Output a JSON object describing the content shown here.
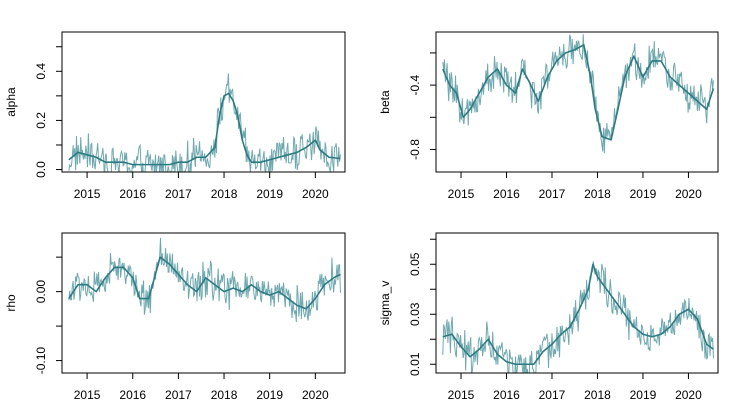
{
  "colors": {
    "band": "#6fa9af",
    "smooth": "#2e7a84",
    "axis": "#000000"
  },
  "chart_data": [
    {
      "type": "line",
      "ylabel": "alpha",
      "x_range": [
        2014.45,
        2020.65
      ],
      "ylim": [
        -0.01,
        0.56
      ],
      "xticks": [
        2015,
        2016,
        2017,
        2018,
        2019,
        2020
      ],
      "xtick_labels": [
        "2015",
        "2016",
        "2017",
        "2018",
        "2019",
        "2020"
      ],
      "yticks": [
        0.0,
        0.2,
        0.4
      ],
      "ytick_labels": [
        "0.0",
        "0.2",
        "0.4"
      ],
      "yminor": [
        0.1,
        0.3,
        0.5
      ],
      "series": [
        {
          "values": [
            [
              2014.6,
              0.04
            ],
            [
              2014.8,
              0.07
            ],
            [
              2015.0,
              0.06
            ],
            [
              2015.2,
              0.05
            ],
            [
              2015.4,
              0.03
            ],
            [
              2015.6,
              0.03
            ],
            [
              2015.8,
              0.03
            ],
            [
              2016.0,
              0.02
            ],
            [
              2016.2,
              0.02
            ],
            [
              2016.4,
              0.02
            ],
            [
              2016.6,
              0.02
            ],
            [
              2016.8,
              0.02
            ],
            [
              2017.0,
              0.03
            ],
            [
              2017.2,
              0.03
            ],
            [
              2017.4,
              0.05
            ],
            [
              2017.6,
              0.05
            ],
            [
              2017.8,
              0.09
            ],
            [
              2017.9,
              0.22
            ],
            [
              2018.0,
              0.3
            ],
            [
              2018.1,
              0.31
            ],
            [
              2018.2,
              0.28
            ],
            [
              2018.3,
              0.22
            ],
            [
              2018.4,
              0.12
            ],
            [
              2018.5,
              0.06
            ],
            [
              2018.6,
              0.03
            ],
            [
              2018.8,
              0.03
            ],
            [
              2019.0,
              0.04
            ],
            [
              2019.2,
              0.05
            ],
            [
              2019.4,
              0.06
            ],
            [
              2019.6,
              0.07
            ],
            [
              2019.8,
              0.09
            ],
            [
              2020.0,
              0.12
            ],
            [
              2020.1,
              0.08
            ],
            [
              2020.3,
              0.05
            ],
            [
              2020.55,
              0.045
            ]
          ]
        }
      ]
    },
    {
      "type": "line",
      "ylabel": "beta",
      "x_range": [
        2014.45,
        2020.65
      ],
      "ylim": [
        -0.94,
        -0.07
      ],
      "xticks": [
        2015,
        2016,
        2017,
        2018,
        2019,
        2020
      ],
      "xtick_labels": [
        "2015",
        "2016",
        "2017",
        "2018",
        "2019",
        "2020"
      ],
      "yticks": [
        -0.8,
        -0.4
      ],
      "ytick_labels": [
        "-0.8",
        "-0.4"
      ],
      "yminor": [
        -0.6,
        -0.2
      ],
      "series": [
        {
          "values": [
            [
              2014.6,
              -0.3
            ],
            [
              2014.75,
              -0.4
            ],
            [
              2014.9,
              -0.45
            ],
            [
              2015.05,
              -0.6
            ],
            [
              2015.2,
              -0.55
            ],
            [
              2015.4,
              -0.45
            ],
            [
              2015.6,
              -0.35
            ],
            [
              2015.8,
              -0.3
            ],
            [
              2016.0,
              -0.4
            ],
            [
              2016.2,
              -0.45
            ],
            [
              2016.35,
              -0.3
            ],
            [
              2016.5,
              -0.38
            ],
            [
              2016.7,
              -0.5
            ],
            [
              2016.9,
              -0.35
            ],
            [
              2017.1,
              -0.25
            ],
            [
              2017.3,
              -0.2
            ],
            [
              2017.5,
              -0.18
            ],
            [
              2017.7,
              -0.15
            ],
            [
              2017.85,
              -0.35
            ],
            [
              2017.95,
              -0.55
            ],
            [
              2018.1,
              -0.72
            ],
            [
              2018.3,
              -0.74
            ],
            [
              2018.45,
              -0.55
            ],
            [
              2018.6,
              -0.35
            ],
            [
              2018.8,
              -0.22
            ],
            [
              2019.0,
              -0.35
            ],
            [
              2019.2,
              -0.25
            ],
            [
              2019.4,
              -0.25
            ],
            [
              2019.6,
              -0.35
            ],
            [
              2019.8,
              -0.4
            ],
            [
              2020.0,
              -0.45
            ],
            [
              2020.2,
              -0.5
            ],
            [
              2020.4,
              -0.55
            ],
            [
              2020.55,
              -0.42
            ]
          ]
        }
      ]
    },
    {
      "type": "line",
      "ylabel": "rho",
      "x_range": [
        2014.45,
        2020.65
      ],
      "ylim": [
        -0.118,
        0.085
      ],
      "xticks": [
        2015,
        2016,
        2017,
        2018,
        2019,
        2020
      ],
      "xtick_labels": [
        "2015",
        "2016",
        "2017",
        "2018",
        "2019",
        "2020"
      ],
      "yticks": [
        -0.1,
        0.0
      ],
      "ytick_labels": [
        "-0.10",
        "0.00"
      ],
      "yminor": [
        -0.05,
        0.05
      ],
      "series": [
        {
          "values": [
            [
              2014.6,
              -0.01
            ],
            [
              2014.8,
              0.01
            ],
            [
              2015.0,
              0.01
            ],
            [
              2015.2,
              0.0
            ],
            [
              2015.4,
              0.02
            ],
            [
              2015.6,
              0.035
            ],
            [
              2015.8,
              0.035
            ],
            [
              2016.0,
              0.02
            ],
            [
              2016.15,
              -0.01
            ],
            [
              2016.35,
              -0.01
            ],
            [
              2016.6,
              0.05
            ],
            [
              2016.8,
              0.04
            ],
            [
              2017.0,
              0.025
            ],
            [
              2017.2,
              0.01
            ],
            [
              2017.4,
              0.0
            ],
            [
              2017.6,
              0.02
            ],
            [
              2017.8,
              0.01
            ],
            [
              2018.0,
              0.0
            ],
            [
              2018.2,
              0.005
            ],
            [
              2018.4,
              0.0
            ],
            [
              2018.6,
              0.01
            ],
            [
              2018.8,
              0.0
            ],
            [
              2019.0,
              -0.005
            ],
            [
              2019.2,
              0.0
            ],
            [
              2019.4,
              -0.01
            ],
            [
              2019.6,
              -0.02
            ],
            [
              2019.8,
              -0.025
            ],
            [
              2020.0,
              -0.01
            ],
            [
              2020.2,
              0.01
            ],
            [
              2020.4,
              0.02
            ],
            [
              2020.55,
              0.025
            ]
          ]
        }
      ]
    },
    {
      "type": "line",
      "ylabel": "sigma_v",
      "x_range": [
        2014.45,
        2020.65
      ],
      "ylim": [
        0.0065,
        0.0625
      ],
      "xticks": [
        2015,
        2016,
        2017,
        2018,
        2019,
        2020
      ],
      "xtick_labels": [
        "2015",
        "2016",
        "2017",
        "2018",
        "2019",
        "2020"
      ],
      "yticks": [
        0.01,
        0.03,
        0.05
      ],
      "ytick_labels": [
        "0.01",
        "0.03",
        "0.05"
      ],
      "yminor": [
        0.02,
        0.04,
        0.06
      ],
      "series": [
        {
          "values": [
            [
              2014.6,
              0.021
            ],
            [
              2014.8,
              0.022
            ],
            [
              2015.0,
              0.017
            ],
            [
              2015.2,
              0.013
            ],
            [
              2015.4,
              0.016
            ],
            [
              2015.6,
              0.02
            ],
            [
              2015.8,
              0.014
            ],
            [
              2016.0,
              0.011
            ],
            [
              2016.2,
              0.01
            ],
            [
              2016.4,
              0.01
            ],
            [
              2016.6,
              0.01
            ],
            [
              2016.8,
              0.015
            ],
            [
              2017.0,
              0.018
            ],
            [
              2017.2,
              0.022
            ],
            [
              2017.4,
              0.025
            ],
            [
              2017.6,
              0.032
            ],
            [
              2017.8,
              0.04
            ],
            [
              2017.9,
              0.05
            ],
            [
              2018.0,
              0.045
            ],
            [
              2018.2,
              0.04
            ],
            [
              2018.4,
              0.035
            ],
            [
              2018.6,
              0.03
            ],
            [
              2018.8,
              0.025
            ],
            [
              2019.0,
              0.022
            ],
            [
              2019.2,
              0.021
            ],
            [
              2019.4,
              0.022
            ],
            [
              2019.6,
              0.025
            ],
            [
              2019.8,
              0.03
            ],
            [
              2020.0,
              0.032
            ],
            [
              2020.2,
              0.028
            ],
            [
              2020.4,
              0.018
            ],
            [
              2020.55,
              0.016
            ]
          ]
        }
      ]
    }
  ]
}
